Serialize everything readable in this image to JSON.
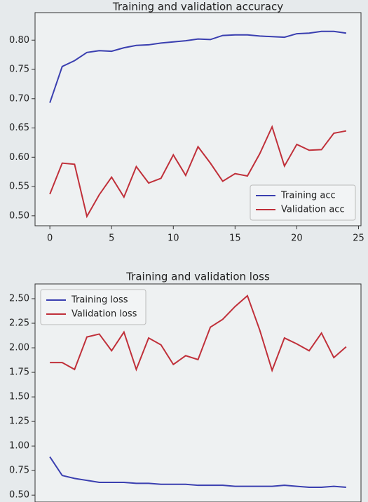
{
  "chart_data": [
    {
      "type": "line",
      "title": "Training and validation accuracy",
      "x": [
        0,
        1,
        2,
        3,
        4,
        5,
        6,
        7,
        8,
        9,
        10,
        11,
        12,
        13,
        14,
        15,
        16,
        17,
        18,
        19,
        20,
        21,
        22,
        23,
        24
      ],
      "series": [
        {
          "name": "Training acc",
          "color": "#3a3fb0",
          "values": [
            0.693,
            0.755,
            0.765,
            0.779,
            0.782,
            0.781,
            0.787,
            0.791,
            0.792,
            0.795,
            0.797,
            0.799,
            0.802,
            0.801,
            0.808,
            0.809,
            0.809,
            0.807,
            0.806,
            0.805,
            0.811,
            0.812,
            0.815,
            0.815,
            0.812
          ]
        },
        {
          "name": "Validation acc",
          "color": "#c0303a",
          "values": [
            0.537,
            0.59,
            0.588,
            0.499,
            0.536,
            0.566,
            0.532,
            0.584,
            0.556,
            0.564,
            0.604,
            0.569,
            0.618,
            0.59,
            0.559,
            0.572,
            0.568,
            0.606,
            0.652,
            0.585,
            0.622,
            0.612,
            0.613,
            0.641,
            0.645
          ]
        }
      ],
      "xlim": [
        -1.2,
        25.2
      ],
      "xticks": [
        0,
        5,
        10,
        15,
        20,
        25
      ],
      "ylim": [
        0.483,
        0.847
      ],
      "yticks": [
        {
          "value": 0.5,
          "label": "0.50"
        },
        0.55,
        {
          "value": 0.6,
          "label": "0.60"
        },
        0.65,
        {
          "value": 0.7,
          "label": "0.70"
        },
        0.75,
        {
          "value": 0.8,
          "label": "0.80"
        }
      ],
      "legend": "lower right"
    },
    {
      "type": "line",
      "title": "Training and validation loss",
      "x": [
        0,
        1,
        2,
        3,
        4,
        5,
        6,
        7,
        8,
        9,
        10,
        11,
        12,
        13,
        14,
        15,
        16,
        17,
        18,
        19,
        20,
        21,
        22,
        23,
        24
      ],
      "series": [
        {
          "name": "Training loss",
          "color": "#3a3fb0",
          "values": [
            0.89,
            0.7,
            0.67,
            0.65,
            0.63,
            0.63,
            0.63,
            0.62,
            0.62,
            0.61,
            0.61,
            0.61,
            0.6,
            0.6,
            0.6,
            0.59,
            0.59,
            0.59,
            0.59,
            0.6,
            0.59,
            0.58,
            0.58,
            0.59,
            0.58
          ]
        },
        {
          "name": "Validation loss",
          "color": "#c0303a",
          "values": [
            1.85,
            1.85,
            1.78,
            2.11,
            2.14,
            1.97,
            2.16,
            1.78,
            2.1,
            2.03,
            1.83,
            1.92,
            1.88,
            2.21,
            2.29,
            2.42,
            2.53,
            2.18,
            1.77,
            2.1,
            2.04,
            1.97,
            2.15,
            1.9,
            2.01
          ]
        }
      ],
      "xlim": [
        -1.2,
        25.2
      ],
      "ylim": [
        0.43,
        2.65
      ],
      "yticks": [
        {
          "value": 0.5,
          "label": "0.50"
        },
        0.75,
        {
          "value": 1.0,
          "label": "1.00"
        },
        1.25,
        {
          "value": 1.5,
          "label": "1.50"
        },
        1.75,
        {
          "value": 2.0,
          "label": "2.00"
        },
        2.25,
        {
          "value": 2.5,
          "label": "2.50"
        }
      ],
      "legend": "upper left"
    }
  ]
}
